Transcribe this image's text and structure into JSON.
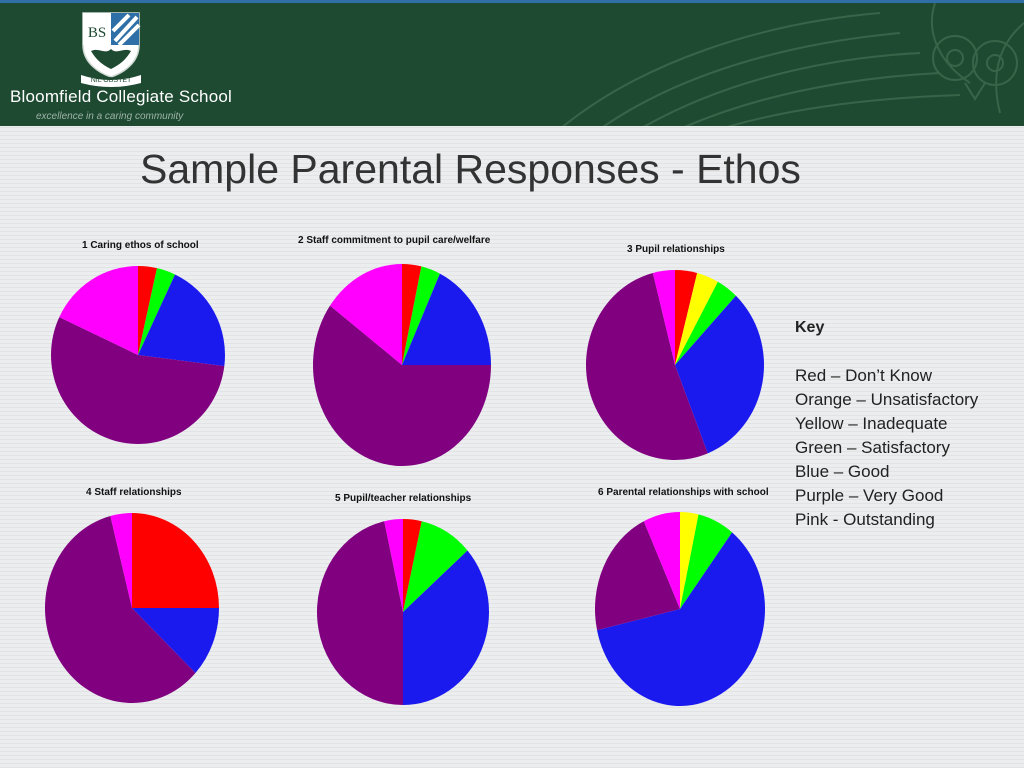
{
  "header": {
    "school_name": "Bloomfield Collegiate School",
    "tagline": "excellence in a caring community",
    "crest_motto": "NIL OBSTET",
    "crest_monogram": "BS"
  },
  "slide": {
    "title": "Sample Parental Responses - Ethos"
  },
  "colors": {
    "Red": "#ff0000",
    "Orange": "#ff8000",
    "Yellow": "#ffff00",
    "Green": "#00ff00",
    "Blue": "#1a1aee",
    "Purple": "#800080",
    "Pink": "#ff00ff",
    "banner": "#1e4a32"
  },
  "key": {
    "heading": "Key",
    "items": [
      "Red – Don’t Know",
      "Orange – Unsatisfactory",
      "Yellow – Inadequate",
      "Green – Satisfactory",
      "Blue – Good",
      "Purple – Very Good",
      "Pink  - Outstanding"
    ]
  },
  "chart_data": [
    {
      "type": "pie",
      "title": "1 Caring ethos of school",
      "slices": [
        {
          "category": "Red",
          "value": 3.5
        },
        {
          "category": "Green",
          "value": 3.5
        },
        {
          "category": "Blue",
          "value": 20
        },
        {
          "category": "Purple",
          "value": 55
        },
        {
          "category": "Pink",
          "value": 18
        }
      ]
    },
    {
      "type": "pie",
      "title": "2 Staff commitment to pupil care/welfare",
      "slices": [
        {
          "category": "Red",
          "value": 3.5
        },
        {
          "category": "Green",
          "value": 3.5
        },
        {
          "category": "Blue",
          "value": 18
        },
        {
          "category": "Purple",
          "value": 60
        },
        {
          "category": "Pink",
          "value": 15
        }
      ]
    },
    {
      "type": "pie",
      "title": "3 Pupil relationships",
      "slices": [
        {
          "category": "Red",
          "value": 4
        },
        {
          "category": "Yellow",
          "value": 4
        },
        {
          "category": "Green",
          "value": 4
        },
        {
          "category": "Blue",
          "value": 32
        },
        {
          "category": "Purple",
          "value": 52
        },
        {
          "category": "Pink",
          "value": 4
        }
      ]
    },
    {
      "type": "pie",
      "title": "4 Staff relationships",
      "slices": [
        {
          "category": "Red",
          "value": 25
        },
        {
          "category": "Blue",
          "value": 12
        },
        {
          "category": "Purple",
          "value": 59
        },
        {
          "category": "Pink",
          "value": 4
        }
      ]
    },
    {
      "type": "pie",
      "title": "5 Pupil/teacher relationships",
      "slices": [
        {
          "category": "Red",
          "value": 3.5
        },
        {
          "category": "Green",
          "value": 10
        },
        {
          "category": "Blue",
          "value": 36.5
        },
        {
          "category": "Purple",
          "value": 46.5
        },
        {
          "category": "Pink",
          "value": 3.5
        }
      ]
    },
    {
      "type": "pie",
      "title": "6 Parental relationships with school",
      "slices": [
        {
          "category": "Yellow",
          "value": 3.5
        },
        {
          "category": "Green",
          "value": 7
        },
        {
          "category": "Blue",
          "value": 61
        },
        {
          "category": "Purple",
          "value": 21.5
        },
        {
          "category": "Pink",
          "value": 7
        }
      ]
    }
  ]
}
